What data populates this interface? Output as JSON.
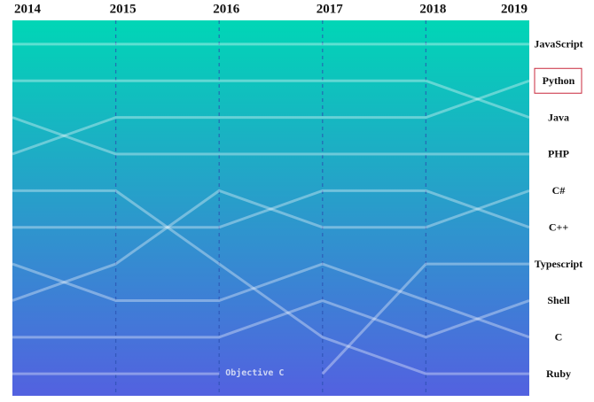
{
  "chart_data": {
    "type": "bump",
    "x": [
      2014,
      2015,
      2016,
      2017,
      2018,
      2019
    ],
    "xlim": [
      2014,
      2019
    ],
    "xticks": [
      2014,
      2015,
      2016,
      2017,
      2018,
      2019
    ],
    "ylim": [
      10.6,
      0.35
    ],
    "y_inverted": true,
    "line_color": "#ffffff",
    "background_colors": [
      "#00d6b6",
      "#5361e0"
    ],
    "gridline_color": "#2a4fb0",
    "highlight": 1,
    "highlight_color": "#c8283c",
    "series": [
      {
        "name": "JavaScript",
        "values": [
          1,
          1,
          1,
          1,
          1,
          1
        ]
      },
      {
        "name": "Python",
        "values": [
          4,
          3,
          3,
          3,
          3,
          2
        ]
      },
      {
        "name": "Java",
        "values": [
          2,
          2,
          2,
          2,
          2,
          3
        ]
      },
      {
        "name": "PHP",
        "values": [
          3,
          4,
          4,
          4,
          4,
          4
        ]
      },
      {
        "name": "C#",
        "values": [
          8,
          7,
          5,
          6,
          6,
          5
        ]
      },
      {
        "name": "C++",
        "values": [
          6,
          6,
          6,
          5,
          5,
          6
        ]
      },
      {
        "name": "Typescript",
        "values": [
          null,
          null,
          null,
          10,
          7,
          7
        ]
      },
      {
        "name": "Shell",
        "values": [
          9,
          9,
          9,
          8,
          9,
          8
        ]
      },
      {
        "name": "C",
        "values": [
          7,
          8,
          8,
          7,
          8,
          9
        ]
      },
      {
        "name": "Ruby",
        "values": [
          5,
          5,
          7,
          9,
          10,
          10
        ]
      },
      {
        "name": "Objective C",
        "values": [
          10,
          10,
          10,
          null,
          null,
          null
        ]
      }
    ]
  }
}
